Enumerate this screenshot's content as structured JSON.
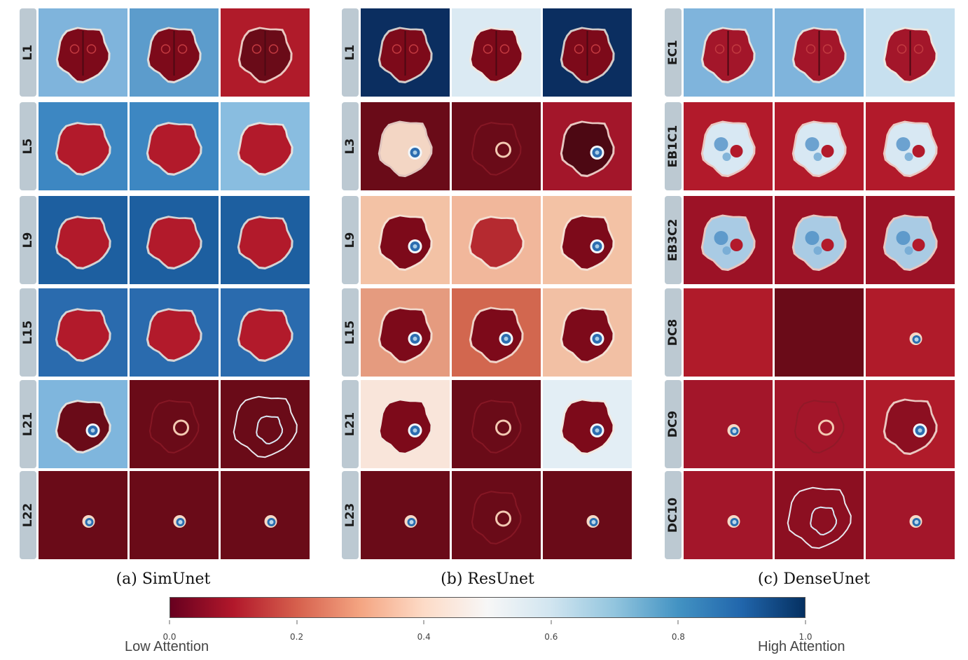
{
  "panels": [
    {
      "caption": "(a) SimUnet",
      "rows": [
        {
          "label": "L1",
          "tiles": [
            {
              "bg": "#7fb4dc",
              "brain": "#7d0a1a",
              "style": "textured"
            },
            {
              "bg": "#5c9ccc",
              "brain": "#7d0a1a",
              "style": "textured"
            },
            {
              "bg": "#b01b2a",
              "brain": "#6a0b18",
              "style": "textured"
            }
          ]
        },
        {
          "label": "L5",
          "tiles": [
            {
              "bg": "#3d87c2",
              "brain": "#b21a2b",
              "style": "solid"
            },
            {
              "bg": "#3d87c2",
              "brain": "#b21a2b",
              "style": "solid"
            },
            {
              "bg": "#89bde0",
              "brain": "#b21a2b",
              "style": "solid"
            }
          ]
        },
        {
          "label": "L9",
          "tiles": [
            {
              "bg": "#1d5fa0",
              "brain": "#b21a2b",
              "style": "solid"
            },
            {
              "bg": "#1d5fa0",
              "brain": "#b21a2b",
              "style": "solid"
            },
            {
              "bg": "#1d5fa0",
              "brain": "#b21a2b",
              "style": "solid"
            }
          ]
        },
        {
          "label": "L15",
          "tiles": [
            {
              "bg": "#2a6bae",
              "brain": "#b21a2b",
              "style": "solid"
            },
            {
              "bg": "#2a6bae",
              "brain": "#b21a2b",
              "style": "solid"
            },
            {
              "bg": "#2a6bae",
              "brain": "#b21a2b",
              "style": "solid"
            }
          ]
        },
        {
          "label": "L21",
          "tiles": [
            {
              "bg": "#7fb6dd",
              "brain": "#6a0b18",
              "style": "lesion"
            },
            {
              "bg": "#6a0b18",
              "brain": "#6a0b18",
              "style": "faint"
            },
            {
              "bg": "#6a0b18",
              "brain": "#6a0b18",
              "style": "outline"
            }
          ]
        },
        {
          "label": "L22",
          "tiles": [
            {
              "bg": "#6a0b18",
              "brain": "#6a0b18",
              "style": "spot"
            },
            {
              "bg": "#6a0b18",
              "brain": "#6a0b18",
              "style": "spot"
            },
            {
              "bg": "#6a0b18",
              "brain": "#6a0b18",
              "style": "spot"
            }
          ]
        }
      ]
    },
    {
      "caption": "(b) ResUnet",
      "rows": [
        {
          "label": "L1",
          "tiles": [
            {
              "bg": "#0b2e60",
              "brain": "#7d0a1a",
              "style": "textured"
            },
            {
              "bg": "#dbeaf3",
              "brain": "#7d0a1a",
              "style": "textured"
            },
            {
              "bg": "#0b2e60",
              "brain": "#7d0a1a",
              "style": "textured"
            }
          ]
        },
        {
          "label": "L3",
          "tiles": [
            {
              "bg": "#6a0b18",
              "brain": "#f3d6c4",
              "style": "tumor"
            },
            {
              "bg": "#6a0b18",
              "brain": "#6a0b18",
              "style": "faint"
            },
            {
              "bg": "#a3162a",
              "brain": "#4d0813",
              "style": "tumor"
            }
          ]
        },
        {
          "label": "L9",
          "tiles": [
            {
              "bg": "#f3c2a5",
              "brain": "#7d0a1a",
              "style": "tumor"
            },
            {
              "bg": "#f1b79b",
              "brain": "#b52a30",
              "style": "solid"
            },
            {
              "bg": "#f3c2a5",
              "brain": "#7d0a1a",
              "style": "tumor"
            }
          ]
        },
        {
          "label": "L15",
          "tiles": [
            {
              "bg": "#e59b7f",
              "brain": "#7d0a1a",
              "style": "tumor"
            },
            {
              "bg": "#d2674f",
              "brain": "#7d0a1a",
              "style": "tumor"
            },
            {
              "bg": "#f2c0a4",
              "brain": "#7d0a1a",
              "style": "tumor"
            }
          ]
        },
        {
          "label": "L21",
          "tiles": [
            {
              "bg": "#f9e5da",
              "brain": "#7d0a1a",
              "style": "tumor"
            },
            {
              "bg": "#6a0b18",
              "brain": "#6a0b18",
              "style": "faint"
            },
            {
              "bg": "#e3eef5",
              "brain": "#7d0a1a",
              "style": "tumor"
            }
          ]
        },
        {
          "label": "L23",
          "tiles": [
            {
              "bg": "#6a0b18",
              "brain": "#6a0b18",
              "style": "spot"
            },
            {
              "bg": "#6a0b18",
              "brain": "#6a0b18",
              "style": "faint"
            },
            {
              "bg": "#6a0b18",
              "brain": "#6a0b18",
              "style": "spot"
            }
          ]
        }
      ]
    },
    {
      "caption": "(c) DenseUnet",
      "rows": [
        {
          "label": "EC1",
          "tiles": [
            {
              "bg": "#7fb4dc",
              "brain": "#a3162a",
              "style": "textured"
            },
            {
              "bg": "#7fb4dc",
              "brain": "#a3162a",
              "style": "textured"
            },
            {
              "bg": "#c7e0ef",
              "brain": "#a3162a",
              "style": "textured"
            }
          ]
        },
        {
          "label": "EB1C1",
          "tiles": [
            {
              "bg": "#b21a2b",
              "brain": "#d8e8f3",
              "style": "bluebrain"
            },
            {
              "bg": "#b21a2b",
              "brain": "#d8e8f3",
              "style": "bluebrain"
            },
            {
              "bg": "#b21a2b",
              "brain": "#d8e8f3",
              "style": "bluebrain"
            }
          ]
        },
        {
          "label": "EB3C2",
          "tiles": [
            {
              "bg": "#9c1226",
              "brain": "#a9cbe4",
              "style": "bluebrain"
            },
            {
              "bg": "#9c1226",
              "brain": "#a9cbe4",
              "style": "bluebrain"
            },
            {
              "bg": "#9c1226",
              "brain": "#a9cbe4",
              "style": "bluebrain"
            }
          ]
        },
        {
          "label": "DC8",
          "tiles": [
            {
              "bg": "#b01b2a",
              "brain": "#b01b2a",
              "style": "none"
            },
            {
              "bg": "#6a0b18",
              "brain": "#6a0b18",
              "style": "none"
            },
            {
              "bg": "#b01b2a",
              "brain": "#b01b2a",
              "style": "spot"
            }
          ]
        },
        {
          "label": "DC9",
          "tiles": [
            {
              "bg": "#a3162a",
              "brain": "#a3162a",
              "style": "spot"
            },
            {
              "bg": "#a3162a",
              "brain": "#a3162a",
              "style": "faint"
            },
            {
              "bg": "#b01b2a",
              "brain": "#8c0f21",
              "style": "tumor"
            }
          ]
        },
        {
          "label": "DC10",
          "tiles": [
            {
              "bg": "#a3162a",
              "brain": "#a3162a",
              "style": "spot"
            },
            {
              "bg": "#8c0f21",
              "brain": "#6a0b18",
              "style": "outline"
            },
            {
              "bg": "#a3162a",
              "brain": "#a3162a",
              "style": "spot"
            }
          ]
        }
      ]
    }
  ],
  "colorbar": {
    "ticks": [
      "0.0",
      "0.2",
      "0.4",
      "0.6",
      "0.8",
      "1.0"
    ],
    "low_label": "Low Attention",
    "high_label": "High Attention",
    "stops": [
      "#67001f",
      "#b2182b",
      "#d6604d",
      "#f4a582",
      "#fddbc7",
      "#f7f7f7",
      "#d1e5f0",
      "#92c5de",
      "#4393c3",
      "#2166ac",
      "#053061"
    ]
  }
}
